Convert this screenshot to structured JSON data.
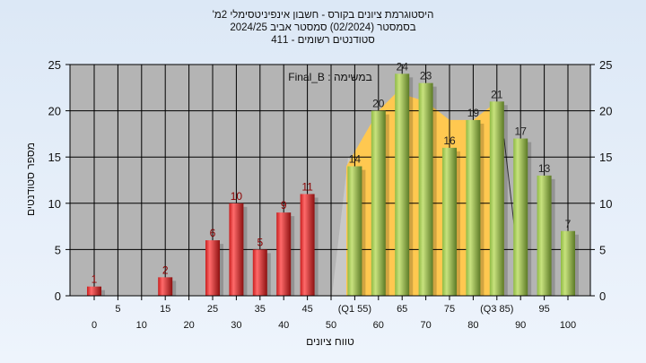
{
  "chart_data": {
    "type": "bar",
    "title_lines": [
      "'היסטוגרמת ציונים בקורס - חשבון אינפיניטסימלי 2מ",
      "בסמסטר  (02/2024)  סמסטר אביב 2024/25",
      "סטודנטים רשומים - 411"
    ],
    "legend_text": "Final_B : במשימה",
    "xlabel": "טווח ציונים",
    "ylabel": "מספר סטודנטים",
    "x_ticks": [
      0,
      5,
      10,
      15,
      20,
      25,
      30,
      35,
      40,
      45,
      50,
      55,
      60,
      65,
      70,
      75,
      80,
      85,
      90,
      95,
      100
    ],
    "x_tick_labels": [
      "0",
      "5",
      "10",
      "15",
      "20",
      "25",
      "30",
      "35",
      "40",
      "45",
      "50",
      "(Q1 55)",
      "60",
      "65",
      "70",
      "75",
      "80",
      "(Q3 85)",
      "90",
      "95",
      "100"
    ],
    "ylim": [
      0,
      25
    ],
    "y_ticks": [
      0,
      5,
      10,
      15,
      20,
      25
    ],
    "grid": true,
    "bars": [
      {
        "x": 0,
        "value": 1
      },
      {
        "x": 15,
        "value": 2
      },
      {
        "x": 25,
        "value": 6
      },
      {
        "x": 30,
        "value": 10
      },
      {
        "x": 35,
        "value": 5
      },
      {
        "x": 40,
        "value": 9
      },
      {
        "x": 45,
        "value": 11
      },
      {
        "x": 55,
        "value": 14
      },
      {
        "x": 60,
        "value": 20
      },
      {
        "x": 65,
        "value": 24
      },
      {
        "x": 70,
        "value": 23
      },
      {
        "x": 75,
        "value": 16
      },
      {
        "x": 80,
        "value": 19
      },
      {
        "x": 85,
        "value": 21
      },
      {
        "x": 90,
        "value": 17
      },
      {
        "x": 95,
        "value": 13
      },
      {
        "x": 100,
        "value": 7
      }
    ],
    "pass_threshold": 55,
    "colors": {
      "fail": "#e02828",
      "pass": "#8fba44",
      "iqr_area": "#ffc850",
      "plot_bg": "#b4b4b4",
      "fail_label": "#8b0000",
      "pass_label": "#222222"
    }
  }
}
